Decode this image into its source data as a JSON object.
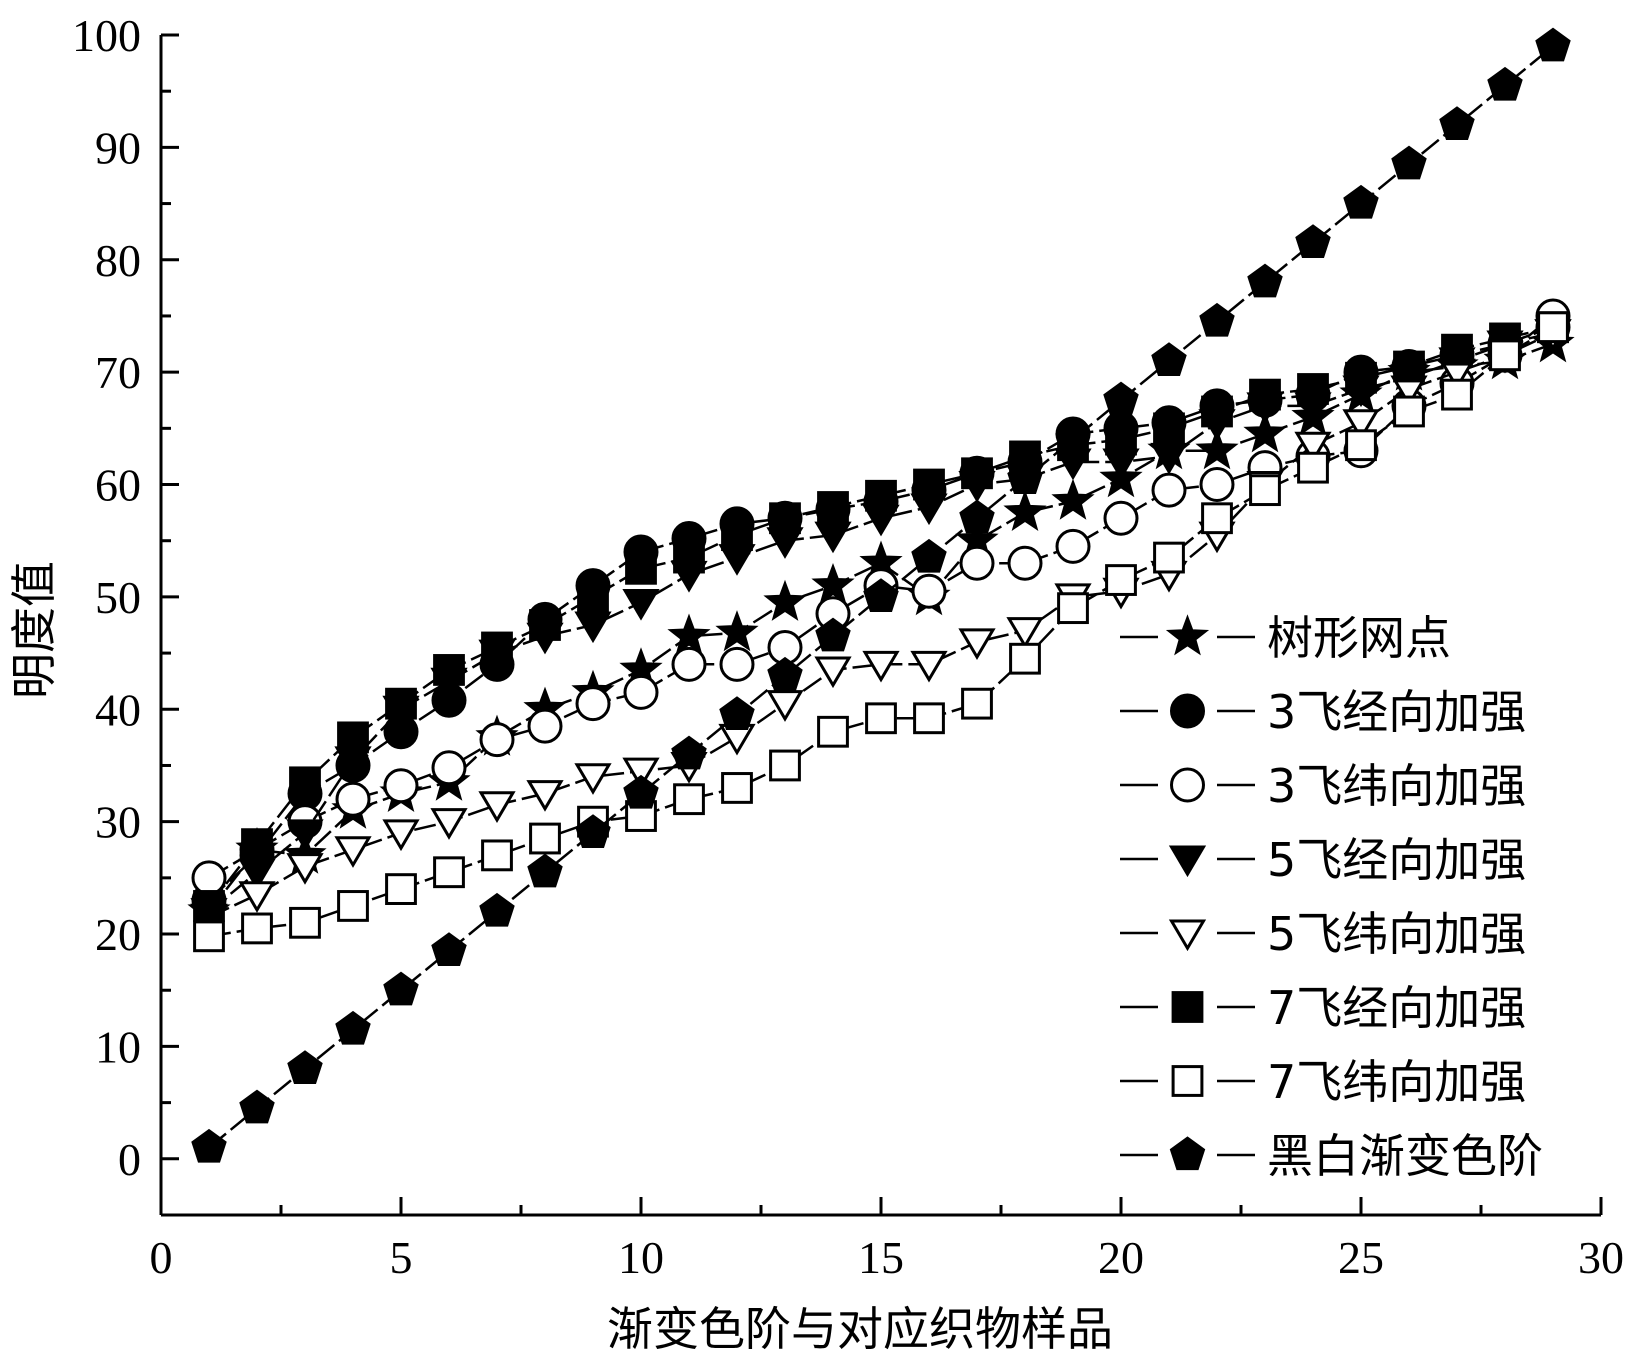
{
  "chart_data": {
    "type": "line",
    "xlabel": "渐变色阶与对应织物样品",
    "ylabel": "明度值",
    "xlim": [
      0,
      30
    ],
    "ylim": [
      -5,
      100
    ],
    "xticks": [
      "0",
      "5",
      "10",
      "15",
      "20",
      "25",
      "30"
    ],
    "yticks": [
      "0",
      "10",
      "20",
      "30",
      "40",
      "50",
      "60",
      "70",
      "80",
      "90",
      "100"
    ],
    "grid": false,
    "legend_position": "bottom-right",
    "x": [
      1,
      2,
      3,
      4,
      5,
      6,
      7,
      8,
      9,
      10,
      11,
      12,
      13,
      14,
      15,
      16,
      17,
      18,
      19,
      20,
      21,
      22,
      23,
      24,
      25,
      26,
      27,
      28,
      29
    ],
    "series": [
      {
        "name": "树形网点",
        "marker": "star",
        "filled": true,
        "values": [
          22,
          27.5,
          27,
          31,
          32.5,
          33.5,
          37.5,
          40,
          41.5,
          43.5,
          46.5,
          46.8,
          49.5,
          51,
          53,
          50,
          55,
          57.5,
          58.5,
          60.5,
          63,
          63,
          64.5,
          66,
          68,
          70,
          70.5,
          71,
          72.5
        ]
      },
      {
        "name": "3飞经向加强",
        "marker": "circle",
        "filled": true,
        "values": [
          23,
          27,
          32.5,
          35,
          38,
          40.8,
          44,
          48,
          51,
          54,
          55.2,
          56.5,
          57,
          57.8,
          58.5,
          59.5,
          61,
          62,
          64.5,
          65,
          65.5,
          67,
          67.5,
          68,
          70,
          70.5,
          71.5,
          72.5,
          74
        ]
      },
      {
        "name": "3飞纬向加强",
        "marker": "circle",
        "filled": false,
        "values": [
          25,
          27.5,
          30,
          32,
          33.2,
          34.8,
          37.3,
          38.5,
          40.5,
          41.5,
          44,
          44,
          45.5,
          48.5,
          51,
          50.5,
          53,
          53,
          54.5,
          57,
          59.5,
          60,
          61.5,
          62.5,
          63,
          67,
          69,
          71.5,
          75
        ]
      },
      {
        "name": "5飞经向加强",
        "marker": "triangle-down",
        "filled": true,
        "values": [
          22,
          25.5,
          29,
          35.5,
          40,
          42.5,
          45,
          46.5,
          47.5,
          49.5,
          52,
          53.5,
          55,
          55.5,
          57,
          58,
          60,
          60.5,
          62,
          62,
          62.5,
          65.5,
          67,
          67,
          68.5,
          69.5,
          71,
          72.5,
          73.5
        ]
      },
      {
        "name": "5飞纬向加强",
        "marker": "triangle-down",
        "filled": false,
        "values": [
          21.5,
          23.5,
          26,
          27.5,
          29,
          30,
          31.5,
          32.5,
          34,
          34.5,
          35,
          37.5,
          40.5,
          43.5,
          44,
          44,
          46,
          47,
          50,
          50.5,
          52,
          55.5,
          60,
          63.5,
          65.5,
          68.5,
          70,
          71.5,
          73.5
        ]
      },
      {
        "name": "7飞经向加强",
        "marker": "square",
        "filled": true,
        "values": [
          22.5,
          28,
          33.5,
          37.5,
          40.5,
          43.5,
          45.5,
          47.5,
          50,
          52.5,
          53.5,
          55.5,
          57,
          58,
          59,
          60,
          61,
          62.5,
          63.5,
          64,
          65,
          66.5,
          68,
          68.5,
          69.5,
          70.5,
          72,
          73,
          74
        ]
      },
      {
        "name": "7飞纬向加强",
        "marker": "square",
        "filled": false,
        "values": [
          19.8,
          20.5,
          21,
          22.5,
          24,
          25.5,
          27,
          28.5,
          30,
          30.5,
          32,
          33,
          35,
          38,
          39.2,
          39.2,
          40.5,
          44.5,
          49,
          51.5,
          53.5,
          57,
          59.5,
          61.5,
          63.5,
          66.5,
          68,
          71.5,
          74
        ]
      },
      {
        "name": "黑白渐变色阶",
        "marker": "pentagon",
        "filled": true,
        "values": [
          1,
          4.5,
          8,
          11.5,
          15,
          18.5,
          22,
          25.5,
          29,
          32.5,
          36,
          39.5,
          43,
          46.5,
          50,
          53.5,
          57,
          60.5,
          64,
          67.5,
          71,
          74.5,
          78,
          81.5,
          85,
          88.5,
          92,
          95.5,
          99
        ]
      }
    ]
  }
}
